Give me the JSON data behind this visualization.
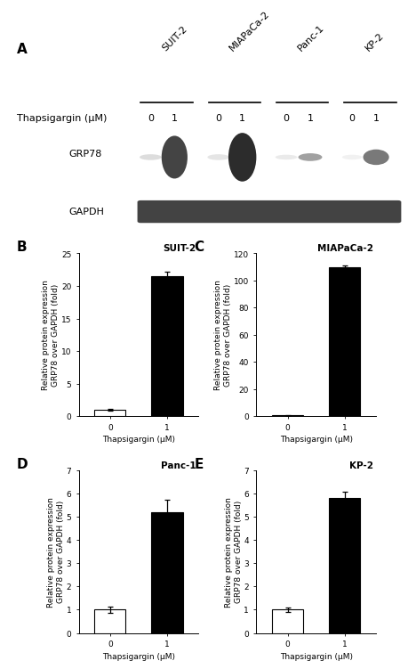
{
  "panel_A_label": "A",
  "panel_B_label": "B",
  "panel_C_label": "C",
  "panel_D_label": "D",
  "panel_E_label": "E",
  "cell_lines": [
    "SUIT-2",
    "MIAPaCa-2",
    "Panc-1",
    "KP-2"
  ],
  "thapsigargin_label": "Thapsigargin (μM)",
  "grp78_label": "GRP78",
  "gapdh_label": "GAPDH",
  "suit2_title": "SUIT-2",
  "miapaca_title": "MIAPaCa-2",
  "panc1_title": "Panc-1",
  "kp2_title": "KP-2",
  "ylabel": "Relative protein expression\nGRP78 over GAPDH (fold)",
  "xlabel": "Thapsigargin (μM)",
  "suit2_values": [
    1.0,
    21.5
  ],
  "suit2_errors": [
    0.15,
    0.7
  ],
  "suit2_ylim": [
    0,
    25
  ],
  "suit2_yticks": [
    0,
    5,
    10,
    15,
    20,
    25
  ],
  "miapaca_values": [
    0.4,
    110.0
  ],
  "miapaca_errors": [
    0.05,
    1.2
  ],
  "miapaca_ylim": [
    0,
    120
  ],
  "miapaca_yticks": [
    0,
    20,
    40,
    60,
    80,
    100,
    120
  ],
  "panc1_values": [
    1.0,
    5.2
  ],
  "panc1_errors": [
    0.15,
    0.55
  ],
  "panc1_ylim": [
    0,
    7
  ],
  "panc1_yticks": [
    0,
    1,
    2,
    3,
    4,
    5,
    6,
    7
  ],
  "kp2_values": [
    1.0,
    5.8
  ],
  "kp2_errors": [
    0.08,
    0.28
  ],
  "kp2_ylim": [
    0,
    7
  ],
  "kp2_yticks": [
    0,
    1,
    2,
    3,
    4,
    5,
    6,
    7
  ],
  "bar_colors_0": "white",
  "bar_colors_1": "black",
  "bar_edgecolor": "black",
  "bar_width": 0.55,
  "xtick_labels": [
    "0",
    "1"
  ],
  "bg_color": "white",
  "font_size_label": 6.5,
  "font_size_title": 7.5,
  "font_size_panel": 11,
  "font_size_tick": 6.5,
  "font_size_xlabel": 6.5,
  "font_size_blot": 8
}
